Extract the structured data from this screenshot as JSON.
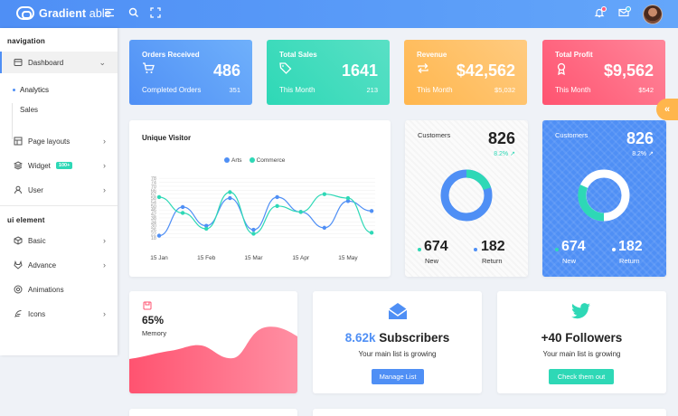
{
  "header": {
    "logo_bold": "Gradient",
    "logo_light": " able",
    "menu_icon": "hamburger-icon",
    "search_icon": "search-icon",
    "fullscreen_icon": "fullscreen-icon",
    "bell_icon": "bell-icon",
    "mail_icon": "mail-icon"
  },
  "sidebar": {
    "caption_navigation": "navigation",
    "dashboard": "Dashboard",
    "sub_items": [
      "Analytics",
      "Sales"
    ],
    "items": [
      {
        "label": "Page layouts",
        "icon": "layout-icon"
      },
      {
        "label": "Widget",
        "icon": "layers-icon",
        "badge": "100+"
      },
      {
        "label": "User",
        "icon": "user-icon"
      }
    ],
    "caption_ui": "ui element",
    "ui_items": [
      {
        "label": "Basic",
        "icon": "box-icon"
      },
      {
        "label": "Advance",
        "icon": "gitlab-icon"
      },
      {
        "label": "Animations",
        "icon": "aperture-icon"
      },
      {
        "label": "Icons",
        "icon": "feather-icon"
      }
    ]
  },
  "stats": [
    {
      "title": "Orders Received",
      "value": "486",
      "foot_label": "Completed Orders",
      "foot_value": "351",
      "icon": "cart-icon",
      "color_from": "#4f8ff5",
      "color_to": "#6fb0fb"
    },
    {
      "title": "Total Sales",
      "value": "1641",
      "foot_label": "This Month",
      "foot_value": "213",
      "icon": "tag-icon",
      "color_from": "#2ed8b6",
      "color_to": "#59e0c5"
    },
    {
      "title": "Revenue",
      "value": "$42,562",
      "foot_label": "This Month",
      "foot_value": "$5,032",
      "icon": "repeat-icon",
      "color_from": "#ffb64d",
      "color_to": "#ffcb80"
    },
    {
      "title": "Total Profit",
      "value": "$9,562",
      "foot_label": "This Month",
      "foot_value": "$542",
      "icon": "award-icon",
      "color_from": "#ff5370",
      "color_to": "#ff869a"
    }
  ],
  "unique_visitor": {
    "title": "Unique Visitor"
  },
  "chart_data": {
    "type": "line",
    "x": [
      "15 Jan",
      "",
      "15 Feb",
      "",
      "15 Mar",
      "",
      "15 Apr",
      "",
      "15 May",
      ""
    ],
    "xticks": [
      "15 Jan",
      "15 Feb",
      "15 Mar",
      "15 Apr",
      "15 May"
    ],
    "series": [
      {
        "name": "Arts",
        "color": "#4f8ff5",
        "values": [
          20,
          49,
          30,
          58,
          26,
          59,
          44,
          28,
          55,
          45
        ]
      },
      {
        "name": "Commerce",
        "color": "#2ed8b6",
        "values": [
          59,
          43,
          27,
          64,
          22,
          50,
          44,
          62,
          58,
          23
        ]
      }
    ],
    "yticks": [
      18,
      22,
      26,
      30,
      34,
      38,
      42,
      46,
      50,
      54,
      58,
      62,
      66,
      70,
      74,
      78
    ],
    "ylim": [
      16,
      80
    ],
    "grid": true,
    "legend": "top-center"
  },
  "customers": [
    {
      "label": "Customers",
      "value": "826",
      "pct": "8.2%",
      "new_value": "674",
      "new_label": "New",
      "ret_value": "182",
      "ret_label": "Return"
    },
    {
      "label": "Customers",
      "value": "826",
      "pct": "8.2%",
      "new_value": "674",
      "new_label": "New",
      "ret_value": "182",
      "ret_label": "Return"
    }
  ],
  "memory": {
    "percent": "65%",
    "label": "Memory",
    "icon": "save-icon"
  },
  "subscribers": {
    "value": "8.62k",
    "label": " Subscribers",
    "sub": "Your main list is growing",
    "button": "Manage List",
    "icon": "mail-icon"
  },
  "followers": {
    "value": "+40 Followers",
    "sub": "Your main list is growing",
    "button": "Check them out",
    "icon": "twitter-icon"
  },
  "side_tab_icon": "chevrons-left-icon"
}
